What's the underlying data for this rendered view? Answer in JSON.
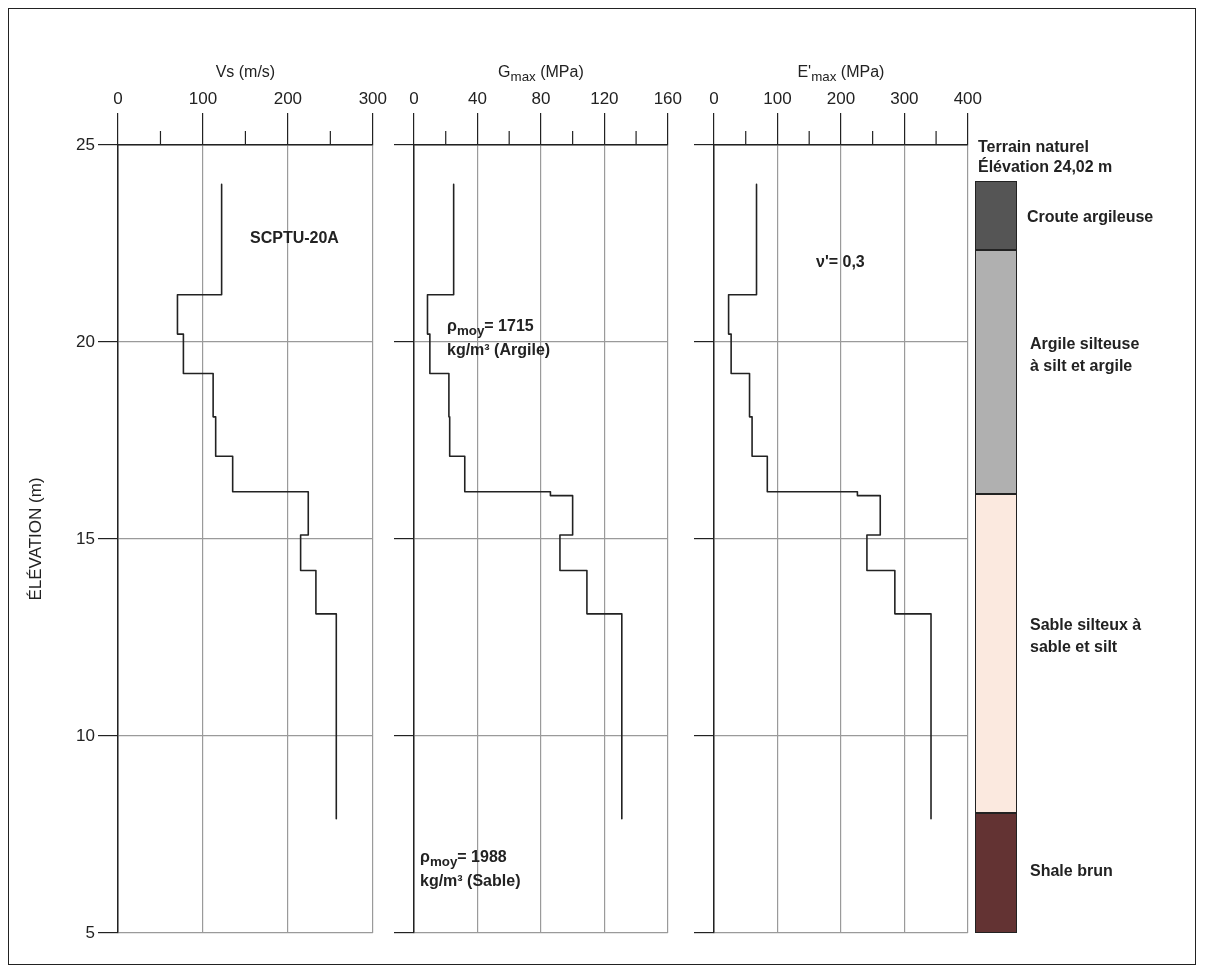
{
  "chart_data": [
    {
      "type": "line",
      "xlabel": "Vs (m/s)",
      "ylabel": "ÉLÉVATION (m)",
      "color": "#222222",
      "x": [
        122,
        122,
        70,
        70,
        77,
        77,
        112,
        112,
        115,
        115,
        135,
        135,
        224,
        224,
        215,
        215,
        233,
        233,
        257,
        257
      ],
      "values": [
        24.0,
        21.2,
        21.2,
        20.2,
        20.2,
        19.2,
        19.2,
        18.1,
        18.1,
        17.1,
        17.1,
        16.2,
        16.2,
        15.1,
        15.1,
        14.2,
        14.2,
        13.1,
        13.1,
        7.9
      ],
      "xlim": [
        0,
        300
      ],
      "xticks": [
        0,
        {
          "value": 50,
          "label": null
        },
        100,
        {
          "value": 150,
          "label": null
        },
        200,
        {
          "value": 250,
          "label": null
        },
        300
      ],
      "ylim": [
        5,
        25
      ],
      "yticks": [
        5,
        10,
        15,
        20,
        25
      ],
      "grid": true,
      "annotations": [
        "SCPTU-20A"
      ]
    },
    {
      "type": "line",
      "xlabel": "G$_{max}$ (MPa)",
      "color": "#222222",
      "x": [
        25,
        25,
        8.5,
        8.5,
        10,
        10,
        22,
        22,
        22.5,
        22.5,
        32,
        32,
        86,
        86,
        100,
        100,
        92,
        92,
        109,
        109,
        131,
        131
      ],
      "values": [
        24.0,
        21.2,
        21.2,
        20.2,
        20.2,
        19.2,
        19.2,
        18.1,
        18.1,
        17.1,
        17.1,
        16.2,
        16.2,
        16.1,
        16.1,
        15.1,
        15.1,
        14.2,
        14.2,
        13.1,
        13.1,
        7.9
      ],
      "xlim": [
        0,
        160
      ],
      "xticks": [
        0,
        {
          "value": 20,
          "label": null
        },
        40,
        {
          "value": 60,
          "label": null
        },
        80,
        {
          "value": 100,
          "label": null
        },
        120,
        {
          "value": 140,
          "label": null
        },
        160
      ],
      "ylim": [
        5,
        25
      ],
      "yticks": [
        5,
        10,
        15,
        20,
        25
      ],
      "grid": true,
      "tick_labels": "x",
      "annotations": [
        "ρ$_{moy}$= 1715 kg/m³ (Argile)",
        "ρ$_{moy}$= 1988 kg/m³ (Sable)"
      ]
    },
    {
      "type": "line",
      "xlabel": "E'$_{max}$ (MPa)",
      "color": "#222222",
      "x": [
        67,
        67,
        23,
        23,
        27,
        27,
        56,
        56,
        60,
        60,
        84,
        84,
        226,
        226,
        262,
        262,
        241,
        241,
        285,
        285,
        342,
        342
      ],
      "values": [
        24.0,
        21.2,
        21.2,
        20.2,
        20.2,
        19.2,
        19.2,
        18.1,
        18.1,
        17.1,
        17.1,
        16.2,
        16.2,
        16.1,
        16.1,
        15.1,
        15.1,
        14.2,
        14.2,
        13.1,
        13.1,
        7.9
      ],
      "xlim": [
        0,
        400
      ],
      "xticks": [
        0,
        {
          "value": 50,
          "label": null
        },
        100,
        {
          "value": 150,
          "label": null
        },
        200,
        {
          "value": 250,
          "label": null
        },
        300,
        {
          "value": 350,
          "label": null
        },
        400
      ],
      "ylim": [
        5,
        25
      ],
      "yticks": [
        5,
        10,
        15,
        20,
        25
      ],
      "grid": true,
      "tick_labels": "x",
      "annotations": [
        "ν'= 0,3"
      ]
    },
    {
      "type": "other",
      "annotations": [
        "Terrain naturel Élévation 24,02 m",
        "Croute argileuse",
        "Argile silteuse à silt et argile",
        "Sable silteux à sable et silt",
        "Shale brun"
      ]
    }
  ]
}
